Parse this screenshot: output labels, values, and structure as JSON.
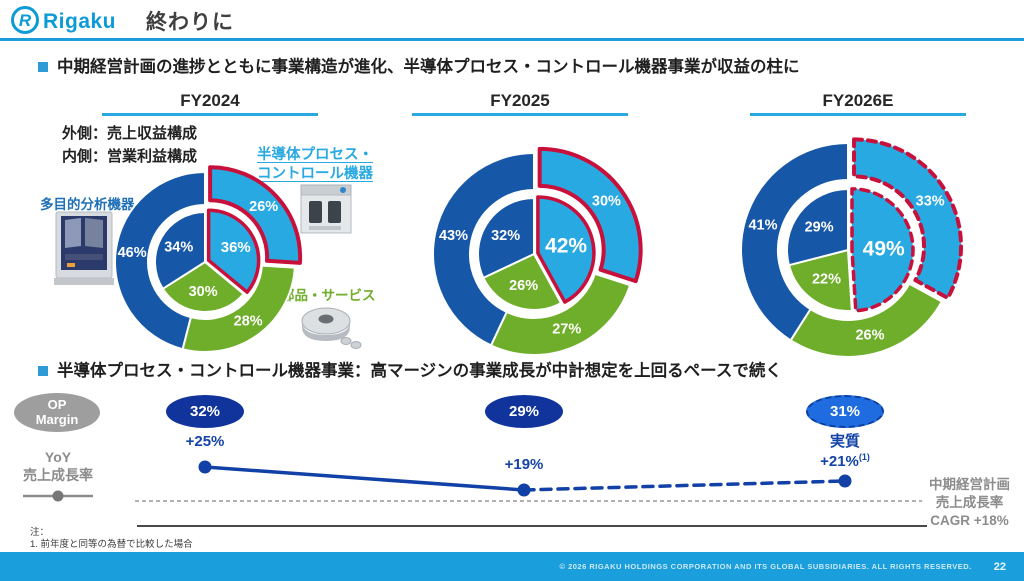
{
  "header": {
    "logo_text": "Rigaku",
    "title": "終わりに"
  },
  "sections": {
    "s1_heading": "中期経営計画の進捗とともに事業構造が進化、半導体プロセス・コントロール機器事業が収益の柱に",
    "legend_outer": "外側：売上収益構成",
    "legend_inner": "内側：営業利益構成",
    "label_semi": "半導体プロセス・\nコントロール機器",
    "label_multi": "多目的分析機器",
    "label_parts": "部品・サービス",
    "s2_heading": "半導体プロセス・コントロール機器事業：高マージンの事業成長が中計想定を上回るペースで続く"
  },
  "chart_data": {
    "type": "pie",
    "subtype": "nested-donut: outer ring = 売上収益構成 (revenue mix), inner pie = 営業利益構成 (operating profit mix)",
    "legend": [
      "多目的分析機器 (dark blue)",
      "半導体プロセス・コントロール機器 (light blue, red highlight)",
      "部品・サービス (green)"
    ],
    "charts": [
      {
        "title": "FY2024",
        "dashed_highlight": false,
        "big_inner_label": false,
        "geom": {
          "r_out": 90,
          "r_donut_in": 57,
          "r_pie": 50
        },
        "outer": [
          {
            "name": "半導体プロセス・コントロール機器",
            "pct": 26,
            "color": "semi",
            "highlight": true
          },
          {
            "name": "部品・サービス",
            "pct": 28,
            "color": "parts",
            "highlight": false
          },
          {
            "name": "多目的分析機器",
            "pct": 46,
            "color": "multi",
            "highlight": false
          }
        ],
        "inner": [
          {
            "name": "半導体プロセス・コントロール機器",
            "pct": 36,
            "color": "semi",
            "highlight": true
          },
          {
            "name": "部品・サービス",
            "pct": 30,
            "color": "parts",
            "highlight": false
          },
          {
            "name": "多目的分析機器",
            "pct": 34,
            "color": "multi",
            "highlight": false
          }
        ]
      },
      {
        "title": "FY2025",
        "dashed_highlight": false,
        "big_inner_label": true,
        "geom": {
          "r_out": 101,
          "r_donut_in": 64,
          "r_pie": 56
        },
        "outer": [
          {
            "name": "半導体プロセス・コントロール機器",
            "pct": 30,
            "color": "semi",
            "highlight": true
          },
          {
            "name": "部品・サービス",
            "pct": 27,
            "color": "parts",
            "highlight": false
          },
          {
            "name": "多目的分析機器",
            "pct": 43,
            "color": "multi",
            "highlight": false
          }
        ],
        "inner": [
          {
            "name": "半導体プロセス・コントロール機器",
            "pct": 42,
            "color": "semi",
            "highlight": true
          },
          {
            "name": "部品・サービス",
            "pct": 26,
            "color": "parts",
            "highlight": false
          },
          {
            "name": "多目的分析機器",
            "pct": 32,
            "color": "multi",
            "highlight": false
          }
        ]
      },
      {
        "title": "FY2026E",
        "dashed_highlight": true,
        "big_inner_label": true,
        "geom": {
          "r_out": 107,
          "r_donut_in": 70,
          "r_pie": 61
        },
        "outer": [
          {
            "name": "半導体プロセス・コントロール機器",
            "pct": 33,
            "color": "semi",
            "highlight": true
          },
          {
            "name": "部品・サービス",
            "pct": 26,
            "color": "parts",
            "highlight": false
          },
          {
            "name": "多目的分析機器",
            "pct": 41,
            "color": "multi",
            "highlight": false
          }
        ],
        "inner": [
          {
            "name": "半導体プロセス・コントロール機器",
            "pct": 49,
            "color": "semi",
            "highlight": true
          },
          {
            "name": "部品・サービス",
            "pct": 22,
            "color": "parts",
            "highlight": false
          },
          {
            "name": "多目的分析機器",
            "pct": 29,
            "color": "multi",
            "highlight": false
          }
        ]
      }
    ],
    "trend": {
      "type": "line",
      "name": "YoY 売上成長率",
      "categories": [
        "FY2024",
        "FY2025",
        "FY2026E"
      ],
      "values_pct": [
        25,
        19,
        21
      ],
      "op_margin_pct": [
        32,
        29,
        31
      ],
      "note": "FY2026E segment dashed (estimate); baseline = 中期経営計画 売上成長率 CAGR +18%"
    }
  },
  "bottom_chart": {
    "op_margin_badge": "OP\nMargin",
    "op_margins": [
      {
        "fy": "FY2024",
        "value": "32%"
      },
      {
        "fy": "FY2025",
        "value": "29%"
      },
      {
        "fy": "FY2026E",
        "value": "31%"
      }
    ],
    "yoy_label": "YoY\n売上成長率",
    "growth_labels": [
      {
        "text": "+25%"
      },
      {
        "text": "+19%"
      },
      {
        "prefix": "実質",
        "text": "+21%",
        "sup": "(1)"
      }
    ],
    "cagr_note": "中期経営計画\n売上成長率\nCAGR +18%"
  },
  "footnote": {
    "head": "注：",
    "item1": "1. 前年度と同等の為替で比較した場合"
  },
  "footer": {
    "copyright": "© 2026 RIGAKU HOLDINGS CORPORATION AND ITS GLOBAL SUBSIDIARIES. ALL RIGHTS RESERVED.",
    "page": "22"
  },
  "colors": {
    "semi": "#29A9E1",
    "parts": "#6FAE2A",
    "multi": "#1757A8",
    "highlight": "#C8103C",
    "accent_blue": "#1B9DD9",
    "deep_blue": "#10349B",
    "bright_blue": "#1F6BE0",
    "line_blue": "#1141A6",
    "gray": "#8C8C8C"
  }
}
